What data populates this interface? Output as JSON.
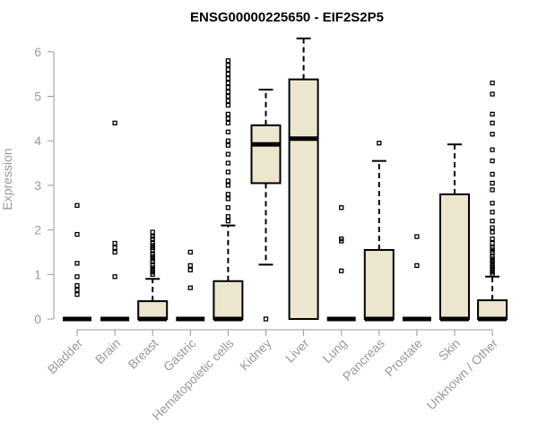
{
  "chart_data": {
    "type": "box",
    "title": "ENSG00000225650 - EIF2S2P5",
    "ylabel": "Expression",
    "xlabel": "",
    "ylim": [
      0,
      6.3
    ],
    "yticks": [
      "0",
      "1",
      "2",
      "3",
      "4",
      "5",
      "6"
    ],
    "colors": {
      "box_fill": "#ede6cf",
      "axis": "#999999",
      "stroke": "#000000"
    },
    "categories": [
      "Bladder",
      "Brain",
      "Breast",
      "Gastric",
      "Hematopoietic cells",
      "Kidney",
      "Liver",
      "Lung",
      "Pancreas",
      "Prostate",
      "Skin",
      "Unknown / Other"
    ],
    "boxes": [
      {
        "q1": 0,
        "median": 0,
        "q3": 0,
        "whisker_low": 0,
        "whisker_high": 0,
        "outliers": [
          0.55,
          0.65,
          0.75,
          0.95,
          1.25,
          1.9,
          2.55
        ]
      },
      {
        "q1": 0,
        "median": 0,
        "q3": 0,
        "whisker_low": 0,
        "whisker_high": 0,
        "outliers": [
          0.95,
          1.5,
          1.6,
          1.7,
          4.4
        ]
      },
      {
        "q1": 0,
        "median": 0,
        "q3": 0.4,
        "whisker_low": 0,
        "whisker_high": 0.9,
        "outliers": [
          1.0,
          1.05,
          1.1,
          1.15,
          1.2,
          1.3,
          1.35,
          1.4,
          1.45,
          1.55,
          1.6,
          1.65,
          1.7,
          1.8,
          1.85,
          1.95
        ]
      },
      {
        "q1": 0,
        "median": 0,
        "q3": 0,
        "whisker_low": 0,
        "whisker_high": 0,
        "outliers": [
          0.7,
          1.1,
          1.2,
          1.5
        ]
      },
      {
        "q1": 0,
        "median": 0,
        "q3": 0.85,
        "whisker_low": 0,
        "whisker_high": 2.1,
        "outliers": [
          2.2,
          2.3,
          2.5,
          2.7,
          2.8,
          3.0,
          3.1,
          3.3,
          3.5,
          3.7,
          3.9,
          4.0,
          4.2,
          4.4,
          4.5,
          4.6,
          4.8,
          4.9,
          5.0,
          5.1,
          5.2,
          5.3,
          5.4,
          5.5,
          5.6,
          5.7,
          5.8
        ]
      },
      {
        "q1": 3.05,
        "median": 3.92,
        "q3": 4.35,
        "whisker_low": 1.22,
        "whisker_high": 5.15,
        "outliers": [
          0
        ]
      },
      {
        "q1": 0,
        "median": 4.05,
        "q3": 5.38,
        "whisker_low": 0,
        "whisker_high": 6.3,
        "outliers": []
      },
      {
        "q1": 0,
        "median": 0,
        "q3": 0,
        "whisker_low": 0,
        "whisker_high": 0,
        "outliers": [
          1.08,
          1.75,
          1.8,
          2.5
        ]
      },
      {
        "q1": 0,
        "median": 0,
        "q3": 1.55,
        "whisker_low": 0,
        "whisker_high": 3.55,
        "outliers": [
          3.95
        ]
      },
      {
        "q1": 0,
        "median": 0,
        "q3": 0,
        "whisker_low": 0,
        "whisker_high": 0,
        "outliers": [
          1.2,
          1.85
        ]
      },
      {
        "q1": 0,
        "median": 0,
        "q3": 2.8,
        "whisker_low": 0,
        "whisker_high": 3.92,
        "outliers": []
      },
      {
        "q1": 0,
        "median": 0,
        "q3": 0.42,
        "whisker_low": 0,
        "whisker_high": 0.95,
        "outliers": [
          1.0,
          1.05,
          1.1,
          1.15,
          1.2,
          1.25,
          1.3,
          1.35,
          1.4,
          1.5,
          1.55,
          1.6,
          1.7,
          1.8,
          1.95,
          2.05,
          2.2,
          2.4,
          2.6,
          2.9,
          3.05,
          3.25,
          3.55,
          3.8,
          4.15,
          4.4,
          4.6,
          5.05,
          5.3
        ]
      }
    ]
  }
}
